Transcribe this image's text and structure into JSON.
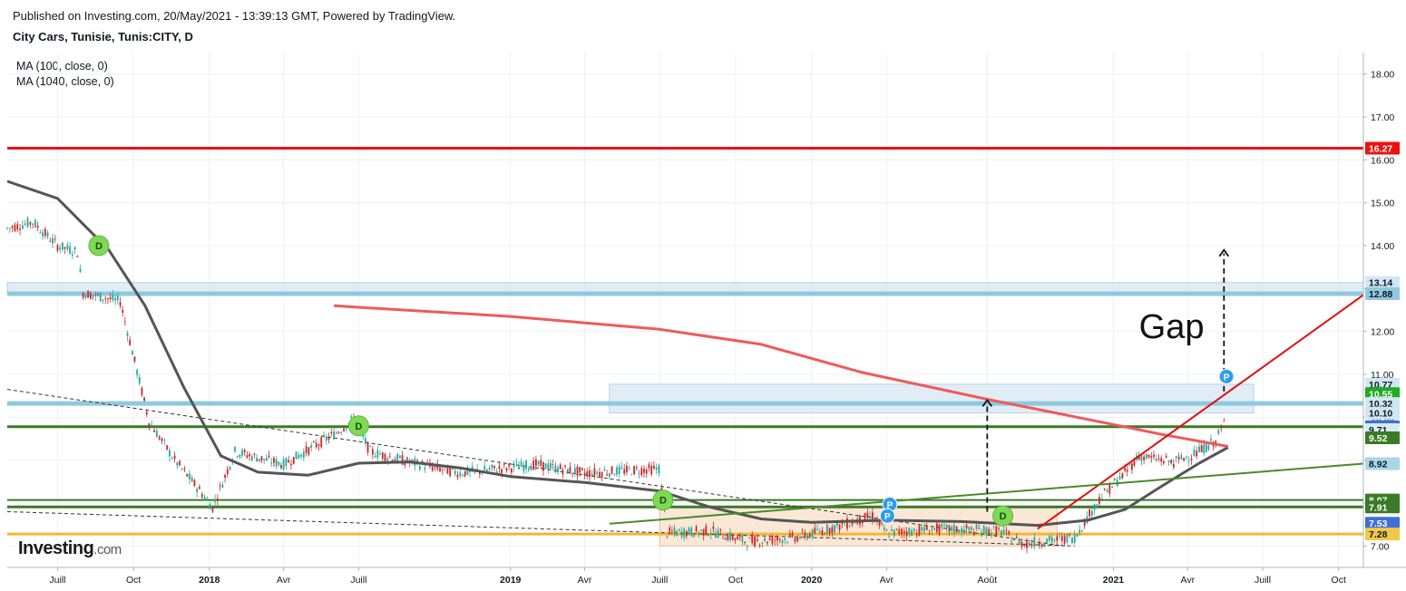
{
  "header": {
    "published": "Published on Investing.com, 20/May/2021 - 13:39:13 GMT, Powered by TradingView.",
    "symbol": "City Cars, Tunisie, Tunis:CITY, D"
  },
  "indicators": [
    "MA (100, close, 0)",
    "MA (1040, close, 0)"
  ],
  "logo": {
    "main": "Investing",
    "suffix": ".com"
  },
  "colors": {
    "red_level": "#ee1111",
    "blue_level": "#8ec9df",
    "green_level": "#3b7a26",
    "orange_level": "#f2b632",
    "ma100": "#555555",
    "ma1040": "#ef5a5a",
    "trend_red": "#e01010",
    "trend_green": "#4a8a2a",
    "up": "#26a69a",
    "down": "#c62828"
  },
  "chart_data": {
    "type": "candlestick",
    "ylim": [
      6.5,
      18.5
    ],
    "yticks": [
      18.0,
      17.0,
      16.0,
      15.0,
      14.0,
      13.0,
      12.0,
      11.0,
      10.0,
      9.0,
      8.0,
      7.0
    ],
    "x_range": [
      "2017-05-01",
      "2021-10-31"
    ],
    "xticks": [
      {
        "label": "Juill",
        "date": "2017-07-01"
      },
      {
        "label": "Oct",
        "date": "2017-10-01"
      },
      {
        "label": "2018",
        "date": "2018-01-01"
      },
      {
        "label": "Avr",
        "date": "2018-04-01"
      },
      {
        "label": "Juill",
        "date": "2018-07-01"
      },
      {
        "label": "2019",
        "date": "2019-01-01"
      },
      {
        "label": "Avr",
        "date": "2019-04-01"
      },
      {
        "label": "Juill",
        "date": "2019-07-01"
      },
      {
        "label": "Oct",
        "date": "2019-10-01"
      },
      {
        "label": "2020",
        "date": "2020-01-01"
      },
      {
        "label": "Avr",
        "date": "2020-04-01"
      },
      {
        "label": "Août",
        "date": "2020-08-01"
      },
      {
        "label": "2021",
        "date": "2021-01-01"
      },
      {
        "label": "Avr",
        "date": "2021-04-01"
      },
      {
        "label": "Juill",
        "date": "2021-07-01"
      },
      {
        "label": "Oct",
        "date": "2021-10-01"
      }
    ],
    "price_badges": [
      {
        "value": "16.27",
        "y": 16.27,
        "bg": "#ee1111",
        "fg": "#ffffff"
      },
      {
        "value": "13.14",
        "y": 13.14,
        "bg": "#cfe7f2",
        "fg": "#131722"
      },
      {
        "value": "12.88",
        "y": 12.88,
        "bg": "#8ec9df",
        "fg": "#131722"
      },
      {
        "value": "10.77",
        "y": 10.77,
        "bg": "#cfe7f2",
        "fg": "#131722"
      },
      {
        "value": "10.55",
        "y": 10.55,
        "bg": "#22aa22",
        "fg": "#ffffff"
      },
      {
        "value": "10.32",
        "y": 10.32,
        "bg": "#cfe7f2",
        "fg": "#131722"
      },
      {
        "value": "10.10",
        "y": 10.1,
        "bg": "#cfe7f2",
        "fg": "#131722"
      },
      {
        "value": "9.78",
        "y": 9.78,
        "bg": "#3d6fd6",
        "fg": "#ffffff"
      },
      {
        "value": "9.71",
        "y": 9.71,
        "bg": "#d6ecf4",
        "fg": "#131722"
      },
      {
        "value": "9.52",
        "y": 9.52,
        "bg": "#3b7a26",
        "fg": "#ffffff"
      },
      {
        "value": "8.92",
        "y": 8.92,
        "bg": "#a9d6e8",
        "fg": "#131722"
      },
      {
        "value": "8.07",
        "y": 8.07,
        "bg": "#3b7a26",
        "fg": "#ffffff"
      },
      {
        "value": "7.91",
        "y": 7.91,
        "bg": "#3b7a26",
        "fg": "#ffffff"
      },
      {
        "value": "7.53",
        "y": 7.53,
        "bg": "#3d6fd6",
        "fg": "#ffffff"
      },
      {
        "value": "7.28",
        "y": 7.28,
        "bg": "#f2c84a",
        "fg": "#131722"
      }
    ],
    "horizontal_levels": [
      {
        "y": 16.27,
        "color": "#ee1111",
        "width": 3
      },
      {
        "y": 12.88,
        "color": "#8ec9df",
        "width": 5
      },
      {
        "y": 10.32,
        "color": "#8ec9df",
        "width": 5
      },
      {
        "y": 9.78,
        "color": "#3b7a26",
        "width": 3
      },
      {
        "y": 8.07,
        "color": "#3b7a26",
        "width": 2
      },
      {
        "y": 7.91,
        "color": "#3b7a26",
        "width": 3
      },
      {
        "y": 7.28,
        "color": "#f2b632",
        "width": 3
      }
    ],
    "zones": [
      {
        "from": "2017-05-01",
        "to": "2021-10-31",
        "y1": 12.88,
        "y2": 13.14,
        "fill": "#dcebf5"
      },
      {
        "from": "2019-05-01",
        "to": "2021-06-20",
        "y1": 10.1,
        "y2": 10.77,
        "fill": "#dcebf5"
      },
      {
        "from": "2019-07-01",
        "to": "2020-10-25",
        "y1": 7.0,
        "y2": 7.9,
        "fill": "#fbe3cf"
      }
    ],
    "ma100": [
      [
        "2017-05-01",
        15.5
      ],
      [
        "2017-07-01",
        15.1
      ],
      [
        "2017-09-01",
        13.9
      ],
      [
        "2017-10-15",
        12.6
      ],
      [
        "2017-12-01",
        10.7
      ],
      [
        "2018-01-15",
        9.1
      ],
      [
        "2018-03-01",
        8.72
      ],
      [
        "2018-05-01",
        8.65
      ],
      [
        "2018-07-01",
        8.93
      ],
      [
        "2018-09-01",
        8.96
      ],
      [
        "2018-11-01",
        8.82
      ],
      [
        "2019-01-01",
        8.62
      ],
      [
        "2019-04-01",
        8.48
      ],
      [
        "2019-07-01",
        8.28
      ],
      [
        "2019-09-01",
        7.9
      ],
      [
        "2019-11-01",
        7.63
      ],
      [
        "2020-01-01",
        7.55
      ],
      [
        "2020-04-01",
        7.6
      ],
      [
        "2020-07-01",
        7.57
      ],
      [
        "2020-10-01",
        7.48
      ],
      [
        "2020-12-01",
        7.6
      ],
      [
        "2021-01-15",
        7.85
      ],
      [
        "2021-03-01",
        8.4
      ],
      [
        "2021-04-15",
        8.93
      ],
      [
        "2021-05-20",
        9.3
      ]
    ],
    "ma1040": [
      [
        "2018-06-01",
        12.6
      ],
      [
        "2019-01-01",
        12.35
      ],
      [
        "2019-07-01",
        12.05
      ],
      [
        "2019-11-01",
        11.7
      ],
      [
        "2020-03-01",
        11.05
      ],
      [
        "2020-08-01",
        10.42
      ],
      [
        "2020-12-01",
        9.95
      ],
      [
        "2021-03-01",
        9.6
      ],
      [
        "2021-05-20",
        9.32
      ]
    ],
    "trend_lines": [
      {
        "from": [
          "2020-10-01",
          7.4
        ],
        "to": [
          "2021-10-31",
          12.85
        ],
        "color": "#e01010",
        "width": 2
      },
      {
        "from": [
          "2019-05-01",
          7.52
        ],
        "to": [
          "2021-10-31",
          8.92
        ],
        "color": "#4a8a2a",
        "width": 2
      }
    ],
    "dashed_lines": [
      {
        "from": [
          "2017-05-01",
          10.65
        ],
        "to": [
          "2020-11-01",
          7.0
        ]
      },
      {
        "from": [
          "2017-05-01",
          7.8
        ],
        "to": [
          "2020-11-15",
          7.0
        ]
      }
    ],
    "arrows": [
      {
        "x": "2020-08-01",
        "from": 7.8,
        "to": 10.4
      },
      {
        "x": "2021-05-15",
        "from": 10.6,
        "to": 13.9
      }
    ],
    "candles_segments": [
      [
        "2017-05-01",
        14.4
      ],
      [
        "2017-06-01",
        14.55
      ],
      [
        "2017-07-01",
        14.0
      ],
      [
        "2017-07-25",
        13.85
      ],
      [
        "2017-08-01",
        12.9
      ],
      [
        "2017-09-15",
        12.7
      ],
      [
        "2017-10-20",
        9.9
      ],
      [
        "2017-11-20",
        9.0
      ],
      [
        "2017-12-20",
        8.3
      ],
      [
        "2018-01-05",
        7.9
      ],
      [
        "2018-02-01",
        9.2
      ],
      [
        "2018-04-01",
        8.9
      ],
      [
        "2018-06-01",
        9.6
      ],
      [
        "2018-06-25",
        9.95
      ],
      [
        "2018-07-15",
        9.2
      ],
      [
        "2018-09-01",
        8.95
      ],
      [
        "2018-11-01",
        8.7
      ],
      [
        "2019-02-01",
        8.9
      ],
      [
        "2019-04-01",
        8.7
      ],
      [
        "2019-06-30",
        8.8
      ],
      [
        "2019-07-10",
        7.3
      ],
      [
        "2019-09-01",
        7.35
      ],
      [
        "2019-10-15",
        7.1
      ],
      [
        "2019-12-15",
        7.2
      ],
      [
        "2020-02-01",
        7.45
      ],
      [
        "2020-03-15",
        7.7
      ],
      [
        "2020-04-01",
        7.3
      ],
      [
        "2020-06-01",
        7.4
      ],
      [
        "2020-08-15",
        7.35
      ],
      [
        "2020-09-15",
        7.05
      ],
      [
        "2020-11-15",
        7.2
      ],
      [
        "2020-12-15",
        8.1
      ],
      [
        "2021-01-15",
        8.7
      ],
      [
        "2021-02-01",
        9.1
      ],
      [
        "2021-03-15",
        8.95
      ],
      [
        "2021-04-15",
        9.2
      ],
      [
        "2021-05-05",
        9.45
      ],
      [
        "2021-05-15",
        9.85
      ],
      [
        "2021-05-19",
        10.55
      ]
    ],
    "annotations": [
      {
        "type": "D",
        "date": "2017-08-20",
        "y": 14.0
      },
      {
        "type": "D",
        "date": "2018-07-01",
        "y": 9.8
      },
      {
        "type": "D",
        "date": "2019-07-05",
        "y": 8.07
      },
      {
        "type": "D",
        "date": "2020-08-20",
        "y": 7.7
      },
      {
        "type": "P",
        "date": "2020-04-05",
        "y": 7.97
      },
      {
        "type": "P",
        "date": "2020-04-02",
        "y": 7.7
      },
      {
        "type": "P",
        "date": "2021-05-18",
        "y": 10.95
      }
    ],
    "text_annotations": [
      {
        "text": "Gap",
        "date": "2021-02-01",
        "y": 11.85
      }
    ]
  }
}
